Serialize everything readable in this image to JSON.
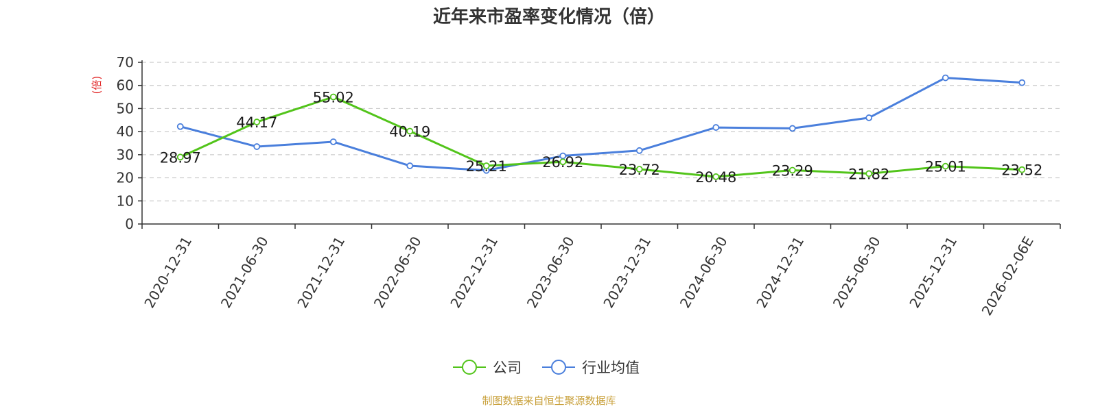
{
  "chart_data": {
    "type": "line",
    "title": "近年来市盈率变化情况（倍）",
    "ylabel": "(倍)",
    "ylim": [
      0,
      70
    ],
    "yticks": [
      0,
      10,
      20,
      30,
      40,
      50,
      60,
      70
    ],
    "grid": true,
    "legend_position": "bottom-center",
    "categories": [
      "2020-12-31",
      "2021-06-30",
      "2021-12-31",
      "2022-06-30",
      "2022-12-31",
      "2023-06-30",
      "2023-12-31",
      "2024-06-30",
      "2024-12-31",
      "2025-06-30",
      "2025-12-31",
      "2026-02-06E"
    ],
    "series": [
      {
        "name": "公司",
        "color": "#52c41a",
        "values": [
          28.97,
          44.17,
          55.02,
          40.19,
          25.21,
          26.92,
          23.72,
          20.48,
          23.29,
          21.82,
          25.01,
          23.52
        ],
        "labels": [
          "28.97",
          "44.17",
          "55.02",
          "40.19",
          "25.21",
          "26.92",
          "23.72",
          "20.48",
          "23.29",
          "21.82",
          "25.01",
          "23.52"
        ]
      },
      {
        "name": "行业均值",
        "color": "#4a7fdc",
        "values": [
          42.2,
          33.5,
          35.6,
          25.2,
          23.2,
          29.5,
          31.8,
          41.8,
          41.4,
          46.0,
          63.3,
          61.2
        ]
      }
    ]
  },
  "footer": {
    "source": "制图数据来自恒生聚源数据库"
  }
}
